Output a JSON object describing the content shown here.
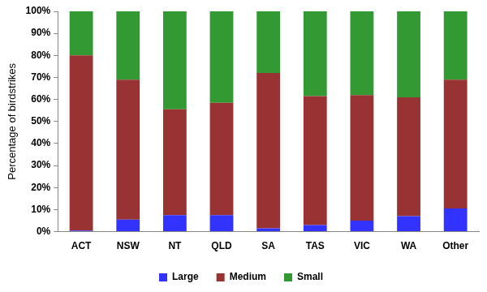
{
  "chart_data": {
    "type": "bar",
    "y_label": "Percentage of birdstrikes",
    "categories": [
      "ACT",
      "NSW",
      "NT",
      "QLD",
      "SA",
      "TAS",
      "VIC",
      "WA",
      "Other"
    ],
    "series": [
      {
        "name": "Large",
        "color": "#3333ff",
        "values": [
          0.5,
          5.5,
          7.5,
          7.5,
          1.5,
          3,
          5,
          7,
          10.5
        ]
      },
      {
        "name": "Medium",
        "color": "#993333",
        "values": [
          79.5,
          63.5,
          48,
          51,
          70.5,
          58.5,
          57,
          54,
          58.5
        ]
      },
      {
        "name": "Small",
        "color": "#339933",
        "values": [
          20,
          31,
          44.5,
          41.5,
          28,
          38.5,
          38,
          39,
          31
        ]
      }
    ],
    "ylim": [
      0,
      100
    ],
    "yticks": [
      {
        "value": 0,
        "label": "0%"
      },
      {
        "value": 10,
        "label": "10%"
      },
      {
        "value": 20,
        "label": "20%"
      },
      {
        "value": 30,
        "label": "30%"
      },
      {
        "value": 40,
        "label": "40%"
      },
      {
        "value": 50,
        "label": "50%"
      },
      {
        "value": 60,
        "label": "60%"
      },
      {
        "value": 70,
        "label": "70%"
      },
      {
        "value": 80,
        "label": "80%"
      },
      {
        "value": 90,
        "label": "90%"
      },
      {
        "value": 100,
        "label": "100%"
      }
    ],
    "stacked": true,
    "grid": false,
    "legend": "bottom"
  }
}
